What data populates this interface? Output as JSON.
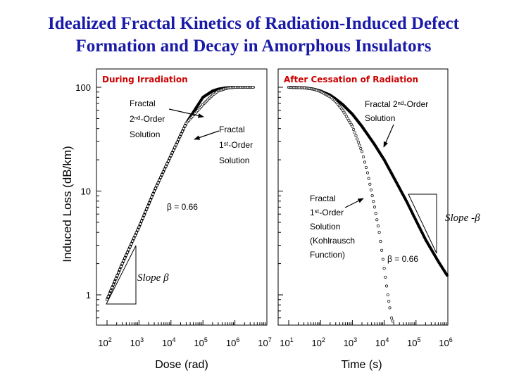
{
  "title_lines": [
    "Idealized Fractal Kinetics of Radiation-Induced Defect",
    "Formation and Decay in Amorphous Insulators"
  ],
  "colors": {
    "title": "#1a1aa8",
    "panel_label": "#cc0000",
    "ink": "#000000"
  },
  "chart_data": [
    {
      "type": "scatter",
      "panel_label": "During Irradiation",
      "xlabel": "Dose (rad)",
      "ylabel": "Induced Loss (dB/km)",
      "x_scale": "log",
      "y_scale": "log",
      "xlim": [
        100,
        10000000
      ],
      "ylim": [
        0.5,
        130
      ],
      "x_ticks": [
        {
          "value": 100,
          "base": "10",
          "exp": "2"
        },
        {
          "value": 1000,
          "base": "10",
          "exp": "3"
        },
        {
          "value": 10000,
          "base": "10",
          "exp": "4"
        },
        {
          "value": 100000,
          "base": "10",
          "exp": "5"
        },
        {
          "value": 1000000,
          "base": "10",
          "exp": "6"
        },
        {
          "value": 10000000,
          "base": "10",
          "exp": "7"
        }
      ],
      "y_ticks": [
        {
          "value": 1,
          "label": "1"
        },
        {
          "value": 10,
          "label": "10"
        },
        {
          "value": 100,
          "label": "100"
        }
      ],
      "series": [
        {
          "marker": "filled",
          "x": [
            100,
            300,
            1000,
            3000,
            10000,
            30000,
            100000,
            200000,
            300000,
            500000,
            700000,
            1000000,
            2000000,
            4000000
          ],
          "y": [
            0.9,
            2.0,
            4.5,
            10,
            22,
            45,
            80,
            92,
            96,
            98.5,
            99.5,
            100,
            100,
            100
          ]
        },
        {
          "marker": "open",
          "x": [
            100,
            300,
            1000,
            3000,
            10000,
            30000,
            100000,
            200000,
            300000,
            500000,
            700000,
            1000000,
            2000000,
            4000000
          ],
          "y": [
            0.9,
            2.0,
            4.5,
            10,
            22,
            45,
            68,
            84,
            92,
            97,
            99,
            100,
            100,
            100
          ]
        }
      ],
      "annotations": [
        {
          "lines": [
            "Fractal",
            "2ⁿᵈ-Order",
            "Solution"
          ],
          "style": "sans"
        },
        {
          "lines": [
            "Fractal",
            "1ˢᵗ-Order",
            "Solution"
          ],
          "style": "sans"
        },
        {
          "lines": [
            "β = 0.66"
          ],
          "style": "sans"
        },
        {
          "lines": [
            "Slope β"
          ],
          "style": "serif"
        }
      ]
    },
    {
      "type": "scatter",
      "panel_label": "After Cessation of Radiation",
      "xlabel": "Time (s)",
      "x_scale": "log",
      "y_scale": "log",
      "xlim": [
        10,
        1000000
      ],
      "ylim": [
        0.5,
        130
      ],
      "x_ticks": [
        {
          "value": 10,
          "base": "10",
          "exp": "1"
        },
        {
          "value": 100,
          "base": "10",
          "exp": "2"
        },
        {
          "value": 1000,
          "base": "10",
          "exp": "3"
        },
        {
          "value": 10000,
          "base": "10",
          "exp": "4"
        },
        {
          "value": 100000,
          "base": "10",
          "exp": "5"
        },
        {
          "value": 1000000,
          "base": "10",
          "exp": "6"
        }
      ],
      "series": [
        {
          "marker": "filled",
          "x": [
            10,
            30,
            60,
            100,
            200,
            300,
            500,
            1000,
            2000,
            5000,
            10000,
            20000,
            50000,
            100000,
            200000,
            500000,
            1000000
          ],
          "y": [
            100,
            99,
            96,
            92,
            84,
            77,
            68,
            55,
            42,
            28,
            20,
            13.5,
            8,
            5.2,
            3.4,
            2.1,
            1.5
          ]
        },
        {
          "marker": "open",
          "x": [
            10,
            30,
            60,
            100,
            200,
            300,
            500,
            1000,
            2000,
            3000,
            5000,
            7000,
            10000,
            13000,
            15000,
            17000,
            20000
          ],
          "y": [
            100,
            99,
            96,
            91,
            81,
            73,
            60,
            42,
            24,
            15,
            7,
            4,
            1.8,
            1.0,
            0.75,
            0.6,
            0.52
          ]
        }
      ],
      "annotations": [
        {
          "lines": [
            "Fractal 2ⁿᵈ-Order",
            "Solution"
          ],
          "style": "sans"
        },
        {
          "lines": [
            "Fractal",
            "1ˢᵗ-Order",
            "Solution",
            "(Kohlrausch",
            "Function)"
          ],
          "style": "sans"
        },
        {
          "lines": [
            "β = 0.66"
          ],
          "style": "sans"
        },
        {
          "lines": [
            "Slope -β"
          ],
          "style": "serif"
        }
      ]
    }
  ]
}
